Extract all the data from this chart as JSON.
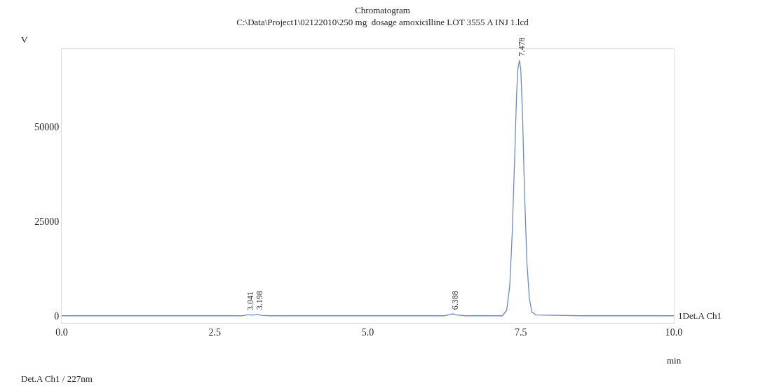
{
  "chart_data": {
    "type": "line",
    "title": "Chromatogram",
    "subtitle": "C:\\Data\\Project1\\02122010\\250 mg  dosage amoxicilline LOT 3555 A INJ 1.lcd",
    "xlabel": "min",
    "ylabel": "V",
    "series": [
      {
        "name": "1Det.A Ch1",
        "color": "#6a8cc4",
        "x": [
          0,
          1.0,
          2.0,
          2.95,
          3.02,
          3.041,
          3.08,
          3.15,
          3.198,
          3.26,
          3.4,
          5.0,
          6.25,
          6.33,
          6.388,
          6.45,
          6.6,
          7.2,
          7.27,
          7.32,
          7.36,
          7.4,
          7.43,
          7.45,
          7.478,
          7.5,
          7.53,
          7.56,
          7.6,
          7.64,
          7.68,
          7.75,
          8.5,
          10.0
        ],
        "values": [
          0,
          0,
          0,
          0,
          200,
          300,
          200,
          200,
          400,
          100,
          0,
          0,
          0,
          300,
          500,
          200,
          0,
          0,
          1500,
          8000,
          22000,
          42000,
          58000,
          65000,
          67500,
          65000,
          52000,
          33000,
          14000,
          4500,
          1000,
          200,
          0,
          0
        ]
      }
    ],
    "annotations": [
      {
        "text": "3.041",
        "x": 3.041,
        "y": 300
      },
      {
        "text": "3.198",
        "x": 3.198,
        "y": 400
      },
      {
        "text": "6.388",
        "x": 6.388,
        "y": 500
      },
      {
        "text": "7.478",
        "x": 7.478,
        "y": 67500
      },
      "Det.A Ch1 / 227nm"
    ],
    "xlim": [
      0,
      10
    ],
    "xticks": [
      {
        "value": 0,
        "label": "0.0"
      },
      2.5,
      {
        "value": 5,
        "label": "5.0"
      },
      7.5,
      {
        "value": 10,
        "label": "10.0"
      }
    ],
    "ylim": [
      -1900,
      70500
    ],
    "yticks": [
      0,
      25000,
      50000
    ],
    "legend": false,
    "marker": "none",
    "line_style": "solid"
  }
}
